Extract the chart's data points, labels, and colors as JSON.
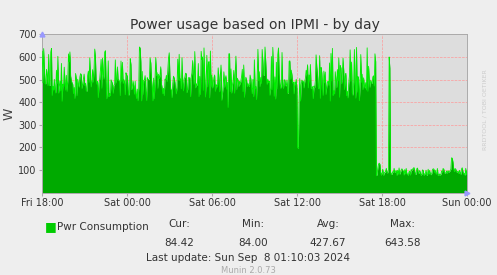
{
  "title": "Power usage based on IPMI - by day",
  "ylabel": "W",
  "xlabel_ticks": [
    "Fri 18:00",
    "Sat 00:00",
    "Sat 06:00",
    "Sat 12:00",
    "Sat 18:00",
    "Sun 00:00"
  ],
  "yticks": [
    100,
    200,
    300,
    400,
    500,
    600,
    700
  ],
  "ylim": [
    0,
    700
  ],
  "legend_label": "Pwr Consumption",
  "cur_label": "Cur:",
  "min_label": "Min:",
  "avg_label": "Avg:",
  "max_label": "Max:",
  "cur": "84.42",
  "min": "84.00",
  "avg": "427.67",
  "max": "643.58",
  "last_update": "Last update: Sun Sep  8 01:10:03 2024",
  "munin_version": "Munin 2.0.73",
  "line_color": "#00EE00",
  "fill_color": "#00AA00",
  "bg_color": "#EEEEEE",
  "plot_bg_color": "#DDDDDD",
  "grid_color": "#FF9999",
  "watermark": "RRDTOOL / TOBI OETIKER",
  "num_points": 600,
  "title_fontsize": 10,
  "tick_fontsize": 7,
  "stats_fontsize": 7.5
}
